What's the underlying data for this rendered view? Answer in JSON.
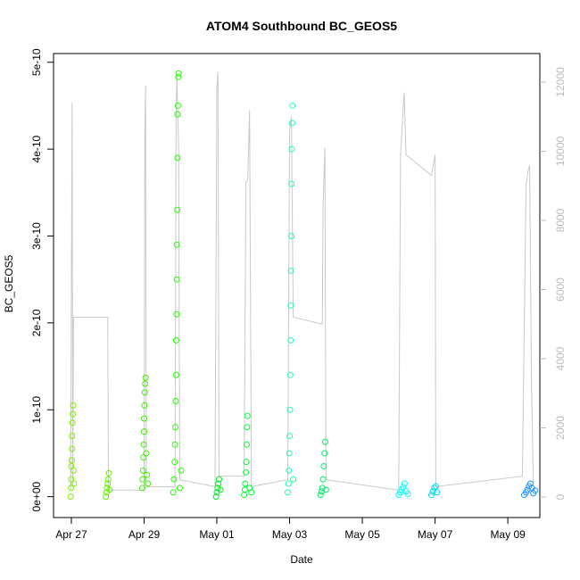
{
  "chart_data": {
    "type": "scatter",
    "title": "ATOM4 Southbound BC_GEOS5",
    "xlabel": "Date",
    "ylabel": "BC_GEOS5",
    "xlim": [
      26.51,
      39.88
    ],
    "xticks": [
      {
        "value": 27,
        "label": "Apr 27"
      },
      {
        "value": 29,
        "label": "Apr 29"
      },
      {
        "value": 31,
        "label": "May 01"
      },
      {
        "value": 33,
        "label": "May 03"
      },
      {
        "value": 35,
        "label": "May 05"
      },
      {
        "value": 37,
        "label": "May 07"
      },
      {
        "value": 39,
        "label": "May 09"
      }
    ],
    "ylim": [
      -2.4e-11,
      5.1e-10
    ],
    "yticks": [
      {
        "value": 0,
        "label": "0e+00"
      },
      {
        "value": 1e-10,
        "label": "1e-10"
      },
      {
        "value": 2e-10,
        "label": "2e-10"
      },
      {
        "value": 3e-10,
        "label": "3e-10"
      },
      {
        "value": 4e-10,
        "label": "4e-10"
      },
      {
        "value": 5e-10,
        "label": "5e-10"
      }
    ],
    "y2lim": [
      -594,
      12826
    ],
    "y2ticks": [
      0,
      2000,
      4000,
      6000,
      8000,
      10000,
      12000
    ],
    "series": [
      {
        "type": "line",
        "axis": "y2",
        "color": "#c8c8c8",
        "x": [
          26.98,
          27.02,
          27.04,
          27.06,
          28.0,
          28.02,
          29.0,
          29.02,
          29.04,
          29.06,
          29.1,
          29.85,
          29.88,
          29.9,
          29.95,
          29.98,
          30.95,
          31.0,
          31.03,
          31.06,
          31.75,
          31.8,
          31.85,
          31.9,
          31.95,
          32.95,
          33.0,
          33.05,
          33.1,
          33.9,
          33.92,
          33.97,
          34.0,
          36.0,
          36.05,
          36.1,
          36.15,
          36.2,
          36.9,
          37.0,
          37.02,
          39.4,
          39.5,
          39.55,
          39.6,
          39.65,
          39.7
        ],
        "values": [
          200,
          11400,
          300,
          5200,
          5200,
          200,
          200,
          10500,
          11900,
          400,
          300,
          300,
          11000,
          12200,
          10000,
          500,
          300,
          11800,
          12300,
          600,
          600,
          9100,
          9200,
          11200,
          300,
          500,
          10600,
          11000,
          5200,
          5000,
          8400,
          10100,
          500,
          200,
          9900,
          10800,
          11700,
          9900,
          9300,
          9900,
          300,
          600,
          9000,
          9400,
          9600,
          3300,
          400
        ]
      },
      {
        "color": "#80ee00",
        "x": [
          26.98,
          26.99,
          27.0,
          27.0,
          27.01,
          27.02,
          27.02,
          27.03,
          27.04,
          27.05,
          27.06,
          27.07
        ],
        "values": [
          0,
          1e-11,
          2e-11,
          3.5e-11,
          4.2e-11,
          5.5e-11,
          7e-11,
          8.5e-11,
          9.5e-11,
          1.05e-10,
          3e-11,
          1.5e-11
        ]
      },
      {
        "color": "#66ee00",
        "x": [
          27.95,
          27.97,
          27.98,
          28.0,
          28.01,
          28.03,
          28.05
        ],
        "values": [
          0,
          5e-12,
          1e-11,
          1.5e-11,
          2e-11,
          2.7e-11,
          8e-12
        ]
      },
      {
        "color": "#44ee00",
        "x": [
          28.95,
          28.96,
          28.97,
          28.98,
          28.99,
          29.0,
          29.0,
          29.01,
          29.02,
          29.03,
          29.04,
          29.06,
          29.08,
          29.1
        ],
        "values": [
          1e-11,
          2e-11,
          3e-11,
          4.5e-11,
          6e-11,
          7.5e-11,
          9e-11,
          1.05e-10,
          1.2e-10,
          1.3e-10,
          1.37e-10,
          5e-11,
          2.5e-11,
          1.5e-11
        ]
      },
      {
        "color": "#22ff00",
        "x": [
          29.8,
          29.82,
          29.84,
          29.85,
          29.86,
          29.87,
          29.88,
          29.88,
          29.89,
          29.9,
          29.9,
          29.91,
          29.92,
          29.92,
          29.93,
          29.94,
          29.95,
          29.98,
          30.02
        ],
        "values": [
          5e-12,
          2e-11,
          4e-11,
          6e-11,
          8e-11,
          1.1e-10,
          1.4e-10,
          1.8e-10,
          2.1e-10,
          2.5e-10,
          2.9e-10,
          3.3e-10,
          3.9e-10,
          4.4e-10,
          4.5e-10,
          4.83e-10,
          4.87e-10,
          1e-11,
          3e-11
        ]
      },
      {
        "color": "#00ee22",
        "x": [
          30.98,
          31.0,
          31.02,
          31.04,
          31.06,
          31.1
        ],
        "values": [
          0,
          5e-12,
          1e-11,
          1.5e-11,
          2e-11,
          8e-12
        ]
      },
      {
        "color": "#00ff33",
        "x": [
          31.75,
          31.77,
          31.78,
          31.8,
          31.81,
          31.82,
          31.83,
          31.84,
          31.9,
          31.95
        ],
        "values": [
          2e-12,
          8e-12,
          1.5e-11,
          2.8e-11,
          4e-11,
          6e-11,
          8e-11,
          9.3e-11,
          1e-11,
          5e-12
        ]
      },
      {
        "color": "#22ffaa",
        "x": [
          32.95,
          32.97,
          32.98,
          32.99,
          33.0,
          33.01,
          33.02,
          33.03,
          33.03,
          33.04,
          33.05,
          33.05,
          33.06,
          33.07,
          33.08,
          33.1
        ],
        "values": [
          5e-12,
          1.5e-11,
          3e-11,
          5e-11,
          7e-11,
          1e-10,
          1.4e-10,
          1.8e-10,
          2.2e-10,
          2.6e-10,
          3e-10,
          3.6e-10,
          4e-10,
          4.3e-10,
          4.5e-10,
          2e-11
        ]
      },
      {
        "color": "#00ee66",
        "x": [
          33.85,
          33.88,
          33.9,
          33.92,
          33.94,
          33.96,
          33.98,
          34.0
        ],
        "values": [
          2e-12,
          6e-12,
          1e-11,
          2e-11,
          3.5e-11,
          5e-11,
          6.3e-11,
          8e-12
        ]
      },
      {
        "color": "#00ffff",
        "x": [
          36.0,
          36.04,
          36.08,
          36.12,
          36.16,
          36.2,
          36.25
        ],
        "values": [
          2e-12,
          5e-12,
          8e-12,
          1.1e-11,
          1.5e-11,
          6e-12,
          3e-12
        ]
      },
      {
        "color": "#00ddee",
        "x": [
          36.9,
          36.94,
          36.98,
          37.02,
          37.05
        ],
        "values": [
          2e-12,
          6e-12,
          1e-11,
          1.2e-11,
          5e-12
        ]
      },
      {
        "color": "#1e90ff",
        "x": [
          39.45,
          39.5,
          39.54,
          39.58,
          39.62,
          39.66,
          39.7,
          39.75
        ],
        "values": [
          2e-12,
          5e-12,
          8e-12,
          1.2e-11,
          1.5e-11,
          1e-11,
          4e-12,
          7e-12
        ]
      }
    ]
  }
}
